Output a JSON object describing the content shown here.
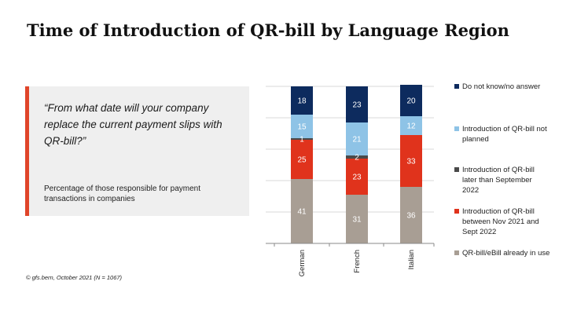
{
  "title": "Time of Introduction of QR-bill by Language Region",
  "question": "“From what date will your company replace the current payment slips with QR-bill?”",
  "note": "Percentage of those responsible for payment transactions in companies",
  "source": "© gfs.bern, October 2021 (N = 1067)",
  "colors": {
    "accent": "#e0452a",
    "box": "#efefef"
  },
  "chart_data": {
    "type": "bar",
    "stacked": true,
    "orientation": "vertical",
    "categories": [
      "German",
      "French",
      "Italian"
    ],
    "ylim": [
      0,
      100
    ],
    "grid": true,
    "legend_position": "right",
    "series": [
      {
        "name": "QR-bill/eBill already in use",
        "color": "#a89e94",
        "values": [
          41,
          31,
          36
        ]
      },
      {
        "name": "Introduction of QR-bill between Nov 2021 and Sept 2022",
        "color": "#e0331c",
        "values": [
          25,
          23,
          33
        ]
      },
      {
        "name": "Introduction of QR-bill later than September 2022",
        "color": "#4a4a4a",
        "values": [
          1,
          2,
          0
        ]
      },
      {
        "name": "Introduction of QR-bill not planned",
        "color": "#8ec3e6",
        "values": [
          15,
          21,
          12
        ]
      },
      {
        "name": "Do not know/no answer",
        "color": "#0d2b5e",
        "values": [
          18,
          23,
          20
        ]
      }
    ]
  }
}
